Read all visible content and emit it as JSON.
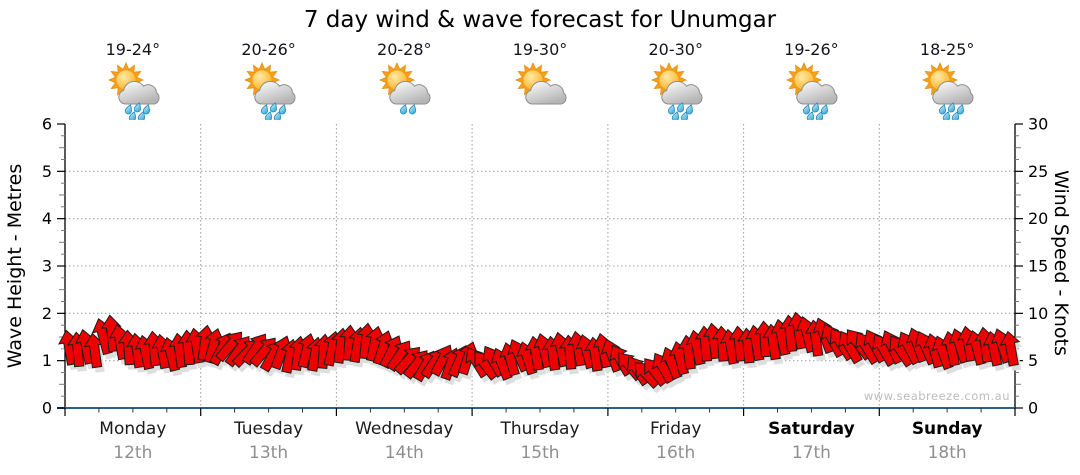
{
  "title": "7 day wind & wave forecast for Unumgar",
  "watermark": "www.seabreeze.com.au",
  "chart_data": {
    "type": "wind-arrows",
    "title": "7 day wind & wave forecast for Unumgar",
    "grid": "dotted",
    "left_axis": {
      "label": "Wave Height - Metres",
      "min": 0,
      "max": 6,
      "ticks": [
        0,
        1,
        2,
        3,
        4,
        5,
        6
      ]
    },
    "right_axis": {
      "label": "Wind Speed - Knots",
      "min": 0,
      "max": 30,
      "ticks": [
        0,
        5,
        10,
        15,
        20,
        25,
        30
      ]
    },
    "days": [
      {
        "name": "Monday",
        "date": "12th",
        "temp": "19-24°",
        "icon": "partly-cloudy-showers",
        "bold": false
      },
      {
        "name": "Tuesday",
        "date": "13th",
        "temp": "20-26°",
        "icon": "partly-cloudy-showers",
        "bold": false
      },
      {
        "name": "Wednesday",
        "date": "14th",
        "temp": "20-28°",
        "icon": "partly-cloudy-light-showers",
        "bold": false
      },
      {
        "name": "Thursday",
        "date": "15th",
        "temp": "19-30°",
        "icon": "partly-cloudy",
        "bold": false
      },
      {
        "name": "Friday",
        "date": "16th",
        "temp": "20-30°",
        "icon": "partly-cloudy-showers",
        "bold": false
      },
      {
        "name": "Saturday",
        "date": "17th",
        "temp": "19-26°",
        "icon": "partly-cloudy-showers",
        "bold": true
      },
      {
        "name": "Sunday",
        "date": "18th",
        "temp": "18-25°",
        "icon": "partly-cloudy-showers",
        "bold": true
      }
    ],
    "wind": {
      "samples_per_day": 16,
      "speeds_knots": [
        6.4,
        6.2,
        6.5,
        6.1,
        7.6,
        7.9,
        7.0,
        6.4,
        6.1,
        5.9,
        6.3,
        6.0,
        5.7,
        6.1,
        6.4,
        6.6,
        6.9,
        6.6,
        6.3,
        6.6,
        6.1,
        5.9,
        6.3,
        6.0,
        5.6,
        5.9,
        5.5,
        5.8,
        6.1,
        5.7,
        6.0,
        6.3,
        6.6,
        6.9,
        6.7,
        7.1,
        6.8,
        6.4,
        6.0,
        5.6,
        5.1,
        4.7,
        4.5,
        4.8,
        5.1,
        4.7,
        5.0,
        5.3,
        4.9,
        4.6,
        5.0,
        4.7,
        5.2,
        5.6,
        5.3,
        5.8,
        6.1,
        5.8,
        6.2,
        5.9,
        6.3,
        6.0,
        5.7,
        6.1,
        5.6,
        5.1,
        4.5,
        4.0,
        3.6,
        3.9,
        4.3,
        4.8,
        5.3,
        5.9,
        6.4,
        6.8,
        7.1,
        6.8,
        6.5,
        6.8,
        6.6,
        6.9,
        7.3,
        7.0,
        7.5,
        7.9,
        8.2,
        7.8,
        7.4,
        7.7,
        7.2,
        6.8,
        6.5,
        6.8,
        6.4,
        6.6,
        6.2,
        6.5,
        6.1,
        6.4,
        6.7,
        6.4,
        6.1,
        5.9,
        6.3,
        6.6,
        6.8,
        6.4,
        6.7,
        6.3,
        6.6,
        6.3
      ],
      "directions_deg": [
        -10,
        -5,
        -12,
        -8,
        -15,
        -6,
        -10,
        -4,
        -8,
        -12,
        -6,
        -10,
        -14,
        -8,
        -5,
        -10,
        8,
        15,
        28,
        40,
        36,
        44,
        34,
        40,
        30,
        20,
        12,
        8,
        14,
        10,
        5,
        12,
        8,
        4,
        10,
        6,
        12,
        18,
        26,
        34,
        42,
        38,
        30,
        34,
        28,
        20,
        24,
        18,
        -32,
        -38,
        -30,
        -22,
        -16,
        -24,
        -18,
        -10,
        -14,
        -8,
        -12,
        -5,
        -10,
        -15,
        -8,
        -12,
        -20,
        -30,
        -40,
        -34,
        -44,
        -38,
        -30,
        -22,
        -14,
        -8,
        -12,
        -5,
        -8,
        -4,
        -10,
        -6,
        -5,
        -10,
        -4,
        -8,
        -12,
        -6,
        -10,
        -15,
        -8,
        -20,
        -28,
        -34,
        -30,
        -38,
        -32,
        -28,
        -30,
        -25,
        -34,
        -28,
        -20,
        -24,
        -15,
        -20,
        -12,
        -18,
        -10,
        -15,
        -8,
        -12,
        -18,
        -10
      ]
    },
    "colors": {
      "arrow": "#ee0000",
      "arrow_outline": "#1c1c1c",
      "arrow_shadow": "#dedede",
      "baseline": "#2a5f8a",
      "grid": "#9c9c9c",
      "axis": "#000000",
      "date_text": "#8f8f8f",
      "watermark_text": "#bcbcbc"
    }
  }
}
